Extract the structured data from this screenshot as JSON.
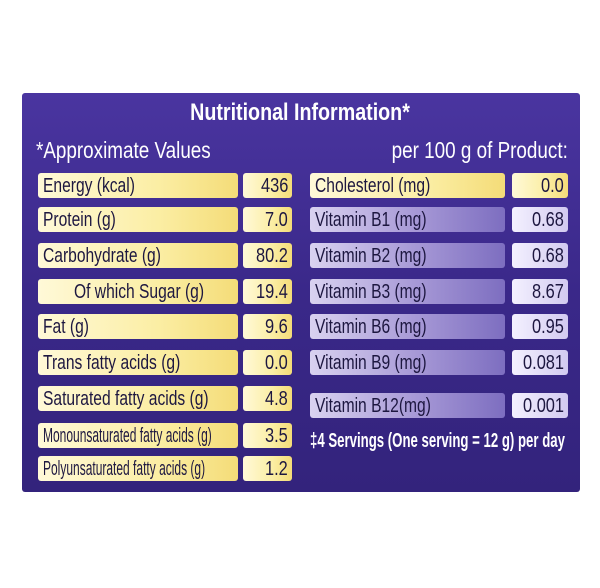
{
  "title": "Nutritional Information*",
  "subtitle_left": "*Approximate Values",
  "subtitle_right": "per 100 g of Product:",
  "left_rows": [
    {
      "label": "Energy (kcal)",
      "value": "436"
    },
    {
      "label": "Protein (g)",
      "value": "7.0"
    },
    {
      "label": "Carbohydrate (g)",
      "value": "80.2"
    },
    {
      "label": "Of which Sugar (g)",
      "value": "19.4"
    },
    {
      "label": "Fat (g)",
      "value": "9.6"
    },
    {
      "label": "Trans fatty acids (g)",
      "value": "0.0"
    },
    {
      "label": "Saturated fatty acids (g)",
      "value": "4.8"
    },
    {
      "label": "Monounsaturated fatty acids (g)",
      "value": "3.5"
    },
    {
      "label": "Polyunsaturated fatty acids (g)",
      "value": "1.2"
    }
  ],
  "right_rows": [
    {
      "label": "Cholesterol (mg)",
      "value": "0.0"
    },
    {
      "label": "Vitamin B1 (mg)",
      "value": "0.68"
    },
    {
      "label": "Vitamin B2 (mg)",
      "value": "0.68"
    },
    {
      "label": "Vitamin B3 (mg)",
      "value": "8.67"
    },
    {
      "label": "Vitamin B6 (mg)",
      "value": "0.95"
    },
    {
      "label": "Vitamin B9 (mg)",
      "value": "0.081"
    },
    {
      "label": "Vitamin B12(mg)",
      "value": "0.001"
    }
  ],
  "footnote": "‡4 Servings (One serving = 12 g) per day"
}
